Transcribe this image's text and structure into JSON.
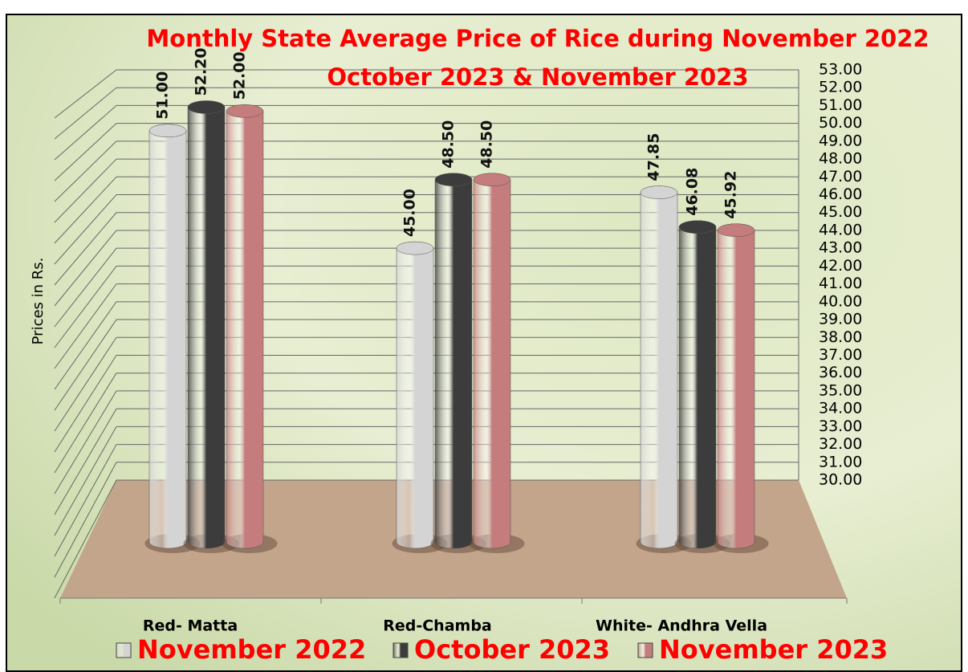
{
  "chart_data": {
    "type": "bar",
    "title": "Monthly State Average Price of Rice during  November 2022",
    "subtitle": "October  2023  &  November 2023",
    "y_label": "Prices in Rs.",
    "categories": [
      "Red- Matta",
      "Red-Chamba",
      "White- Andhra Vella"
    ],
    "series": [
      {
        "name": "November 2022",
        "color": "#d4d4d4",
        "values": [
          51.0,
          45.0,
          47.85
        ],
        "value_labels": [
          "51.00",
          "45.00",
          "47.85"
        ]
      },
      {
        "name": "October 2023",
        "color": "#3c3c3c",
        "values": [
          52.2,
          48.5,
          46.08
        ],
        "value_labels": [
          "52.20",
          "48.50",
          "46.08"
        ]
      },
      {
        "name": "November 2023",
        "color": "#c47c7c",
        "values": [
          52.0,
          48.5,
          45.92
        ],
        "value_labels": [
          "52.00",
          "48.50",
          "45.92"
        ]
      }
    ],
    "ylim": [
      30,
      53
    ],
    "yticks": [
      {
        "value": 30,
        "label": "30.00"
      },
      {
        "value": 31,
        "label": "31.00"
      },
      {
        "value": 32,
        "label": "32.00"
      },
      {
        "value": 33,
        "label": "33.00"
      },
      {
        "value": 34,
        "label": "34.00"
      },
      {
        "value": 35,
        "label": "35.00"
      },
      {
        "value": 36,
        "label": "36.00"
      },
      {
        "value": 37,
        "label": "37.00"
      },
      {
        "value": 38,
        "label": "38.00"
      },
      {
        "value": 39,
        "label": "39.00"
      },
      {
        "value": 40,
        "label": "40.00"
      },
      {
        "value": 41,
        "label": "41.00"
      },
      {
        "value": 42,
        "label": "42.00"
      },
      {
        "value": 43,
        "label": "43.00"
      },
      {
        "value": 44,
        "label": "44.00"
      },
      {
        "value": 45,
        "label": "45.00"
      },
      {
        "value": 46,
        "label": "46.00"
      },
      {
        "value": 47,
        "label": "47.00"
      },
      {
        "value": 48,
        "label": "48.00"
      },
      {
        "value": 49,
        "label": "49.00"
      },
      {
        "value": 50,
        "label": "50.00"
      },
      {
        "value": 51,
        "label": "51.00"
      },
      {
        "value": 52,
        "label": "52.00"
      },
      {
        "value": 53,
        "label": "53.00"
      }
    ],
    "grid": true
  }
}
